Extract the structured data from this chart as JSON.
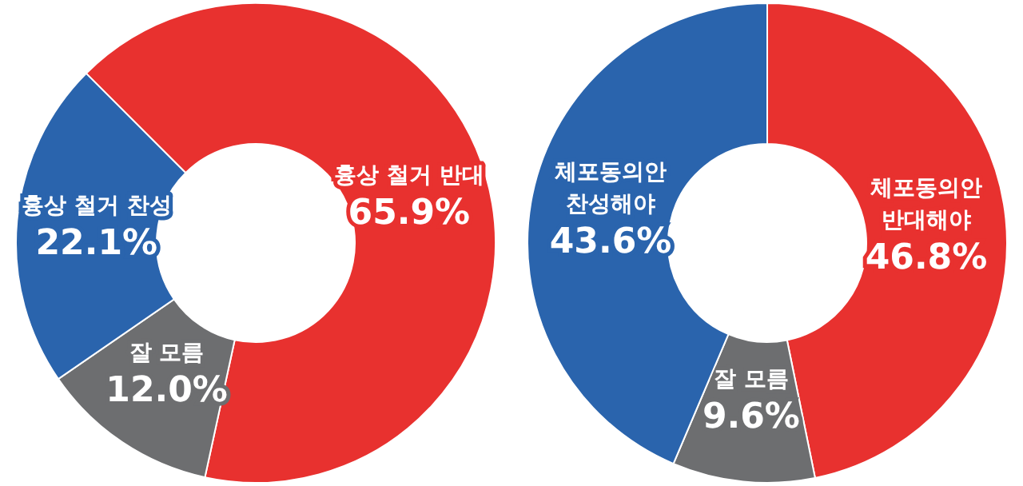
{
  "chart_data": [
    {
      "type": "donut",
      "categories": [
        "흉상 철거 반대",
        "잘 모름",
        "흉상 철거 찬성"
      ],
      "values": [
        65.9,
        12.0,
        22.1
      ],
      "colors": [
        "#e8312f",
        "#6d6e70",
        "#2a64ad"
      ],
      "value_labels": [
        "65.9%",
        "12.0%",
        "22.1%"
      ]
    },
    {
      "type": "donut",
      "categories": [
        "체포동의안\n반대해야",
        "잘 모름",
        "체포동의안\n찬성해야"
      ],
      "values": [
        46.8,
        9.6,
        43.6
      ],
      "colors": [
        "#e8312f",
        "#6d6e70",
        "#2a64ad"
      ],
      "value_labels": [
        "46.8%",
        "9.6%",
        "43.6%"
      ]
    }
  ]
}
